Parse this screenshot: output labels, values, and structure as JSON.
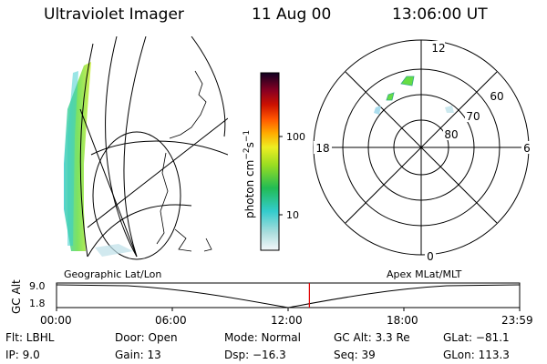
{
  "header": {
    "instrument": "Ultraviolet Imager",
    "date": "11 Aug 00",
    "time": "13:06:00 UT"
  },
  "colorbar": {
    "unit_main": "photon cm",
    "unit_sup1": "−2",
    "unit_mid": "s",
    "unit_sup2": "−1",
    "ticks": [
      "100",
      "10"
    ]
  },
  "polar_plot": {
    "mlt_labels": {
      "top": "12",
      "left": "18",
      "right": "6",
      "bottom": "0"
    },
    "lat_labels": [
      "60",
      "70",
      "80"
    ],
    "label": "Apex MLat/MLT"
  },
  "geo_plot": {
    "label": "Geographic Lat/Lon"
  },
  "timeline": {
    "axis_label": "GC Alt",
    "y_ticks": [
      "9.0",
      "1.8"
    ],
    "x_ticks": [
      "00:00",
      "06:00",
      "12:00",
      "18:00",
      "23:59"
    ],
    "current_time_fraction": 0.546
  },
  "status": {
    "flt": "Flt: LBHL",
    "ip": "IP: 9.0",
    "door": "Door: Open",
    "gain": "Gain: 13",
    "mode": "Mode: Normal",
    "dsp": "Dsp: −16.3",
    "gc_alt": "GC Alt: 3.3 Re",
    "seq": "Seq: 39",
    "glat": "GLat: −81.1",
    "glon": "GLon: 113.3"
  },
  "colors": {
    "marker": "#e00000",
    "aurora_green": "#66dd44",
    "aurora_cyan": "#33cccc"
  }
}
